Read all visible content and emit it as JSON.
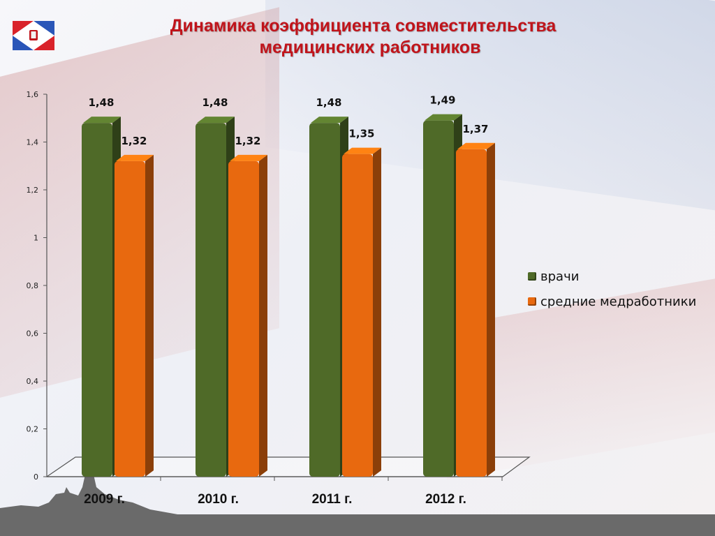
{
  "title": {
    "line1": "Динамика коэффициента совместительства",
    "line2": "медицинских работников"
  },
  "colors": {
    "title": "#c0141b",
    "series_doctors": "#4f6a28",
    "series_nurses": "#e8690f"
  },
  "chart_data": {
    "type": "bar",
    "categories": [
      "2009 г.",
      "2010 г.",
      "2011 г.",
      "2012 г."
    ],
    "series": [
      {
        "name": "врачи",
        "values": [
          1.48,
          1.48,
          1.48,
          1.49
        ],
        "labels": [
          "1,48",
          "1,48",
          "1,48",
          "1,49"
        ]
      },
      {
        "name": "средние медработники",
        "values": [
          1.32,
          1.32,
          1.35,
          1.37
        ],
        "labels": [
          "1,32",
          "1,32",
          "1,35",
          "1,37"
        ]
      }
    ],
    "ylim": [
      0,
      1.6
    ],
    "yticks": [
      "0",
      "0,2",
      "0,4",
      "0,6",
      "0,8",
      "1",
      "1,2",
      "1,4",
      "1,6"
    ],
    "legend_position": "right",
    "grid": false
  }
}
